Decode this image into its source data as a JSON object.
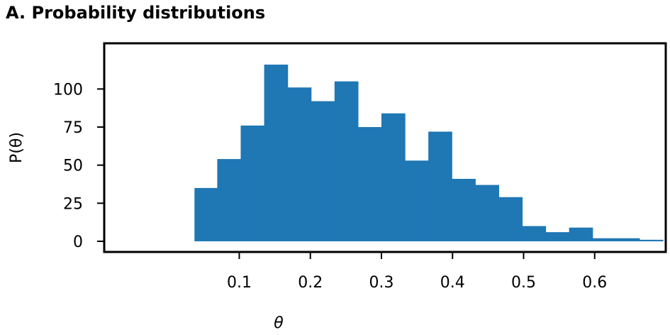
{
  "panel_title": "A. Probability distributions",
  "chart_data": {
    "type": "bar",
    "subtype": "histogram",
    "title": "A. Probability distributions",
    "xlabel": "θ",
    "ylabel": "P(θ)",
    "xlim": [
      -0.09,
      0.7
    ],
    "ylim": [
      -7,
      130
    ],
    "xticks": [
      0.1,
      0.2,
      0.3,
      0.4,
      0.5,
      0.6
    ],
    "xtick_labels": [
      "0.1",
      "0.2",
      "0.3",
      "0.4",
      "0.5",
      "0.6"
    ],
    "yticks": [
      0,
      25,
      50,
      75,
      100
    ],
    "ytick_labels": [
      "0",
      "25",
      "50",
      "75",
      "100"
    ],
    "bin_edges": [
      0.037,
      0.069,
      0.102,
      0.135,
      0.168,
      0.201,
      0.234,
      0.267,
      0.3,
      0.333,
      0.366,
      0.399,
      0.432,
      0.465,
      0.498,
      0.531,
      0.564,
      0.597,
      0.63,
      0.663,
      0.696
    ],
    "values": [
      35,
      54,
      76,
      116,
      101,
      92,
      105,
      75,
      84,
      53,
      72,
      41,
      37,
      29,
      10,
      6,
      9,
      2,
      2,
      1
    ],
    "color": "#1f77b4",
    "grid": false,
    "legend": "none"
  }
}
